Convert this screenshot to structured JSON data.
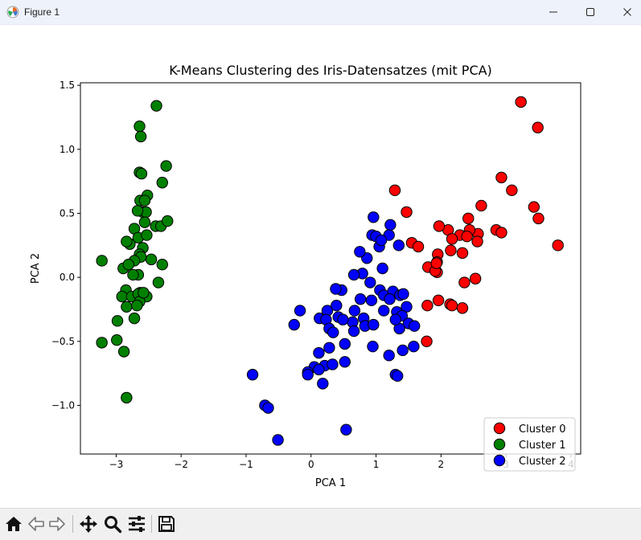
{
  "window": {
    "title": "Figure 1",
    "icon": "matplotlib-icon"
  },
  "window_controls": {
    "minimize": "minimize-icon",
    "maximize": "maximize-icon",
    "close": "close-icon"
  },
  "toolbar": {
    "buttons": [
      "home-icon",
      "back-icon",
      "forward-icon",
      "pan-icon",
      "zoom-icon",
      "configure-subplots-icon",
      "save-icon"
    ]
  },
  "chart_data": {
    "type": "scatter",
    "title": "K-Means Clustering des Iris-Datensatzes (mit PCA)",
    "xlabel": "PCA 1",
    "ylabel": "PCA 2",
    "xlim": [
      -3.55,
      4.15
    ],
    "ylim": [
      -1.38,
      1.52
    ],
    "xticks": [
      -3,
      -2,
      -1,
      0,
      1,
      2,
      3,
      4
    ],
    "xtick_labels": [
      "−3",
      "−2",
      "−1",
      "0",
      "1",
      "2",
      "3",
      "4"
    ],
    "yticks": [
      -1.0,
      -0.5,
      0.0,
      0.5,
      1.0,
      1.5
    ],
    "ytick_labels": [
      "−1.0",
      "−0.5",
      "0.0",
      "0.5",
      "1.0",
      "1.5"
    ],
    "grid": false,
    "legend_position": "lower-right",
    "series": [
      {
        "name": "Cluster 0",
        "color": "#ff0000",
        "points": [
          [
            3.23,
            1.37
          ],
          [
            3.49,
            1.17
          ],
          [
            2.93,
            0.78
          ],
          [
            3.09,
            0.68
          ],
          [
            3.43,
            0.55
          ],
          [
            3.5,
            0.46
          ],
          [
            3.8,
            0.25
          ],
          [
            2.62,
            0.56
          ],
          [
            2.85,
            0.37
          ],
          [
            2.93,
            0.35
          ],
          [
            2.57,
            0.34
          ],
          [
            2.42,
            0.46
          ],
          [
            2.44,
            0.37
          ],
          [
            2.29,
            0.33
          ],
          [
            2.4,
            0.32
          ],
          [
            2.56,
            0.28
          ],
          [
            2.11,
            0.37
          ],
          [
            1.97,
            0.4
          ],
          [
            2.17,
            0.3
          ],
          [
            2.15,
            0.21
          ],
          [
            2.33,
            0.19
          ],
          [
            1.95,
            0.18
          ],
          [
            1.94,
            0.12
          ],
          [
            1.8,
            0.08
          ],
          [
            1.94,
            0.04
          ],
          [
            1.91,
            0.05
          ],
          [
            1.93,
            0.11
          ],
          [
            1.47,
            0.51
          ],
          [
            1.55,
            0.27
          ],
          [
            1.65,
            0.24
          ],
          [
            1.29,
            0.68
          ],
          [
            2.53,
            -0.01
          ],
          [
            2.36,
            -0.04
          ],
          [
            1.79,
            -0.22
          ],
          [
            1.96,
            -0.18
          ],
          [
            2.14,
            -0.21
          ],
          [
            2.17,
            -0.22
          ],
          [
            2.33,
            -0.24
          ],
          [
            1.78,
            -0.5
          ]
        ]
      },
      {
        "name": "Cluster 1",
        "color": "#008000",
        "points": [
          [
            -2.38,
            1.34
          ],
          [
            -2.64,
            1.18
          ],
          [
            -2.62,
            1.1
          ],
          [
            -2.64,
            0.82
          ],
          [
            -2.61,
            0.81
          ],
          [
            -2.23,
            0.87
          ],
          [
            -2.29,
            0.74
          ],
          [
            -2.52,
            0.64
          ],
          [
            -2.63,
            0.6
          ],
          [
            -2.59,
            0.51
          ],
          [
            -2.56,
            0.6
          ],
          [
            -2.54,
            0.51
          ],
          [
            -2.67,
            0.52
          ],
          [
            -2.56,
            0.43
          ],
          [
            -2.39,
            0.4
          ],
          [
            -2.31,
            0.4
          ],
          [
            -2.21,
            0.44
          ],
          [
            -2.72,
            0.38
          ],
          [
            -2.66,
            0.31
          ],
          [
            -2.53,
            0.33
          ],
          [
            -2.79,
            0.26
          ],
          [
            -2.84,
            0.28
          ],
          [
            -2.59,
            0.23
          ],
          [
            -2.64,
            0.18
          ],
          [
            -2.46,
            0.14
          ],
          [
            -2.62,
            0.16
          ],
          [
            -2.72,
            0.13
          ],
          [
            -2.89,
            0.07
          ],
          [
            -2.81,
            0.1
          ],
          [
            -2.29,
            0.1
          ],
          [
            -3.22,
            0.13
          ],
          [
            -2.35,
            -0.04
          ],
          [
            -2.66,
            0.02
          ],
          [
            -2.74,
            0.02
          ],
          [
            -2.85,
            -0.1
          ],
          [
            -2.63,
            -0.12
          ],
          [
            -2.91,
            -0.15
          ],
          [
            -2.76,
            -0.15
          ],
          [
            -2.66,
            -0.13
          ],
          [
            -2.53,
            -0.15
          ],
          [
            -2.64,
            -0.19
          ],
          [
            -2.84,
            -0.23
          ],
          [
            -2.68,
            -0.22
          ],
          [
            -2.72,
            -0.32
          ],
          [
            -2.98,
            -0.34
          ],
          [
            -3.22,
            -0.51
          ],
          [
            -2.99,
            -0.49
          ],
          [
            -2.88,
            -0.58
          ],
          [
            -2.84,
            -0.94
          ],
          [
            -2.58,
            -0.12
          ]
        ]
      },
      {
        "name": "Cluster 2",
        "color": "#0000ff",
        "points": [
          [
            0.96,
            0.47
          ],
          [
            1.22,
            0.41
          ],
          [
            0.86,
            0.15
          ],
          [
            0.94,
            0.33
          ],
          [
            1.0,
            0.32
          ],
          [
            1.05,
            0.24
          ],
          [
            1.35,
            0.25
          ],
          [
            1.2,
            0.33
          ],
          [
            1.08,
            0.29
          ],
          [
            0.75,
            0.2
          ],
          [
            1.1,
            0.07
          ],
          [
            0.79,
            0.03
          ],
          [
            0.66,
            0.02
          ],
          [
            0.91,
            -0.04
          ],
          [
            1.06,
            -0.1
          ],
          [
            1.12,
            -0.14
          ],
          [
            1.26,
            -0.11
          ],
          [
            1.37,
            -0.14
          ],
          [
            1.42,
            -0.13
          ],
          [
            1.47,
            -0.23
          ],
          [
            1.21,
            -0.17
          ],
          [
            1.12,
            -0.26
          ],
          [
            1.32,
            -0.27
          ],
          [
            1.4,
            -0.3
          ],
          [
            1.5,
            -0.36
          ],
          [
            1.59,
            -0.38
          ],
          [
            1.36,
            -0.4
          ],
          [
            1.3,
            -0.33
          ],
          [
            0.93,
            -0.18
          ],
          [
            0.76,
            -0.17
          ],
          [
            0.47,
            -0.1
          ],
          [
            0.38,
            -0.09
          ],
          [
            0.25,
            -0.26
          ],
          [
            0.39,
            -0.22
          ],
          [
            0.42,
            -0.31
          ],
          [
            0.67,
            -0.26
          ],
          [
            0.64,
            -0.35
          ],
          [
            0.81,
            -0.32
          ],
          [
            0.66,
            -0.42
          ],
          [
            0.83,
            -0.38
          ],
          [
            0.96,
            -0.37
          ],
          [
            -0.17,
            -0.26
          ],
          [
            -0.26,
            -0.37
          ],
          [
            0.13,
            -0.32
          ],
          [
            0.23,
            -0.33
          ],
          [
            0.28,
            -0.4
          ],
          [
            0.49,
            -0.33
          ],
          [
            0.34,
            -0.43
          ],
          [
            0.52,
            -0.52
          ],
          [
            0.28,
            -0.55
          ],
          [
            0.12,
            -0.59
          ],
          [
            0.95,
            -0.54
          ],
          [
            1.41,
            -0.57
          ],
          [
            1.58,
            -0.54
          ],
          [
            1.2,
            -0.61
          ],
          [
            0.52,
            -0.66
          ],
          [
            0.21,
            -0.69
          ],
          [
            0.05,
            -0.7
          ],
          [
            0.12,
            -0.72
          ],
          [
            -0.05,
            -0.74
          ],
          [
            -0.05,
            -0.76
          ],
          [
            0.33,
            -0.68
          ],
          [
            0.18,
            -0.83
          ],
          [
            -0.9,
            -0.76
          ],
          [
            1.3,
            -0.76
          ],
          [
            1.33,
            -0.77
          ],
          [
            -0.71,
            -1.0
          ],
          [
            -0.66,
            -1.02
          ],
          [
            0.54,
            -1.19
          ],
          [
            -0.51,
            -1.27
          ]
        ]
      }
    ]
  }
}
